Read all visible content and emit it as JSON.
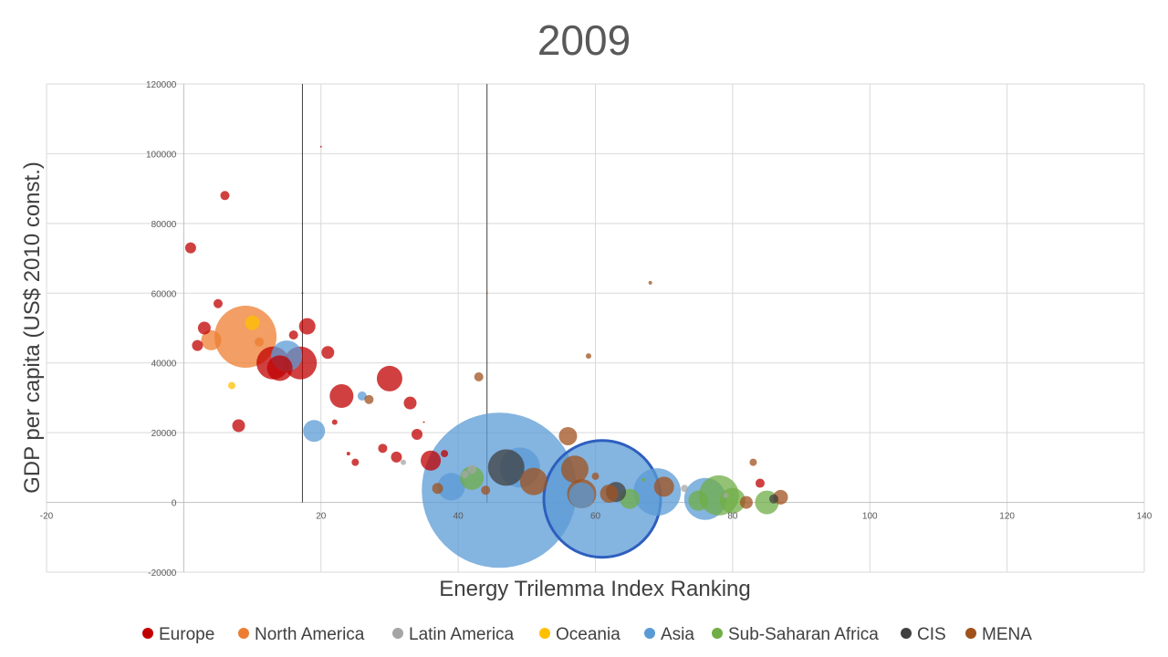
{
  "chart_data": {
    "type": "scatter",
    "bubble": true,
    "title": "2009",
    "xlabel": "Energy Trilemma Index Ranking",
    "ylabel": "GDP per capita (US$ 2010 const.)",
    "xlim": [
      -20,
      140
    ],
    "ylim": [
      -20000,
      120000
    ],
    "x_ticks": [
      -20,
      0,
      20,
      40,
      60,
      80,
      100,
      120,
      140
    ],
    "x_tick_labels": [
      "-20",
      "",
      "20",
      "40",
      "60",
      "80",
      "100",
      "120",
      "140"
    ],
    "y_ticks": [
      -20000,
      0,
      20000,
      40000,
      60000,
      80000,
      100000,
      120000
    ],
    "y_tick_labels": [
      "-20000",
      "0",
      "20000",
      "40000",
      "60000",
      "80000",
      "100000",
      "120000"
    ],
    "grid": true,
    "legend_position": "bottom",
    "reference_lines_x": [
      17.3,
      44.2
    ],
    "series": [
      {
        "name": "Europe",
        "color": "#C00000",
        "points": [
          {
            "x": 1,
            "y": 73000,
            "s": 6
          },
          {
            "x": 2,
            "y": 45000,
            "s": 6
          },
          {
            "x": 3,
            "y": 50000,
            "s": 7
          },
          {
            "x": 5,
            "y": 57000,
            "s": 5
          },
          {
            "x": 6,
            "y": 88000,
            "s": 5
          },
          {
            "x": 8,
            "y": 22000,
            "s": 7
          },
          {
            "x": 13,
            "y": 40000,
            "s": 18
          },
          {
            "x": 14,
            "y": 38500,
            "s": 14
          },
          {
            "x": 16,
            "y": 48000,
            "s": 5
          },
          {
            "x": 17,
            "y": 40000,
            "s": 18
          },
          {
            "x": 18,
            "y": 50500,
            "s": 9
          },
          {
            "x": 20,
            "y": 102000,
            "s": 1
          },
          {
            "x": 21,
            "y": 43000,
            "s": 7
          },
          {
            "x": 22,
            "y": 23000,
            "s": 3
          },
          {
            "x": 23,
            "y": 30500,
            "s": 13
          },
          {
            "x": 24,
            "y": 14000,
            "s": 2
          },
          {
            "x": 25,
            "y": 11500,
            "s": 4
          },
          {
            "x": 29,
            "y": 15500,
            "s": 5
          },
          {
            "x": 30,
            "y": 35500,
            "s": 14
          },
          {
            "x": 31,
            "y": 13000,
            "s": 6
          },
          {
            "x": 33,
            "y": 28500,
            "s": 7
          },
          {
            "x": 34,
            "y": 19500,
            "s": 6
          },
          {
            "x": 35,
            "y": 23000,
            "s": 1
          },
          {
            "x": 36,
            "y": 12000,
            "s": 11
          },
          {
            "x": 38,
            "y": 14000,
            "s": 4
          },
          {
            "x": 84,
            "y": 5500,
            "s": 5
          }
        ]
      },
      {
        "name": "North America",
        "color": "#ED7D31",
        "points": [
          {
            "x": 4,
            "y": 46500,
            "s": 11
          },
          {
            "x": 9,
            "y": 47500,
            "s": 34
          },
          {
            "x": 11,
            "y": 46000,
            "s": 5
          }
        ]
      },
      {
        "name": "Latin America",
        "color": "#A5A5A5",
        "points": [
          {
            "x": 32,
            "y": 11500,
            "s": 3
          },
          {
            "x": 41,
            "y": 8000,
            "s": 4
          },
          {
            "x": 42,
            "y": 9500,
            "s": 5
          },
          {
            "x": 73,
            "y": 4000,
            "s": 4
          },
          {
            "x": 79,
            "y": 2000,
            "s": 3
          }
        ]
      },
      {
        "name": "Oceania",
        "color": "#FFC000",
        "points": [
          {
            "x": 7,
            "y": 33500,
            "s": 4
          },
          {
            "x": 10,
            "y": 51500,
            "s": 8
          }
        ]
      },
      {
        "name": "Asia",
        "color": "#5B9BD5",
        "points": [
          {
            "x": 15,
            "y": 42000,
            "s": 17
          },
          {
            "x": 19,
            "y": 20500,
            "s": 12
          },
          {
            "x": 26,
            "y": 30500,
            "s": 5
          },
          {
            "x": 39,
            "y": 4500,
            "s": 15
          },
          {
            "x": 46,
            "y": 3500,
            "s": 85
          },
          {
            "x": 49,
            "y": 10000,
            "s": 22
          },
          {
            "x": 58,
            "y": 2000,
            "s": 14
          },
          {
            "x": 61,
            "y": 1000,
            "s": 64
          },
          {
            "x": 69,
            "y": 3000,
            "s": 26
          },
          {
            "x": 76,
            "y": 1000,
            "s": 23
          }
        ]
      },
      {
        "name": "Sub-Saharan Africa",
        "color": "#70AD47",
        "points": [
          {
            "x": 42,
            "y": 7000,
            "s": 13
          },
          {
            "x": 65,
            "y": 1000,
            "s": 11
          },
          {
            "x": 67,
            "y": 6500,
            "s": 2
          },
          {
            "x": 75,
            "y": 500,
            "s": 11
          },
          {
            "x": 78,
            "y": 2000,
            "s": 22
          },
          {
            "x": 80,
            "y": 500,
            "s": 14
          },
          {
            "x": 85,
            "y": 0,
            "s": 13
          }
        ]
      },
      {
        "name": "CIS",
        "color": "#404040",
        "points": [
          {
            "x": 17.3,
            "y": 60000,
            "s": 1
          },
          {
            "x": 47,
            "y": 10000,
            "s": 20
          },
          {
            "x": 63,
            "y": 3000,
            "s": 11
          },
          {
            "x": 86,
            "y": 1000,
            "s": 5
          }
        ]
      },
      {
        "name": "MENA",
        "color": "#A0521D",
        "points": [
          {
            "x": 27,
            "y": 29500,
            "s": 5
          },
          {
            "x": 37,
            "y": 4000,
            "s": 6
          },
          {
            "x": 43,
            "y": 36000,
            "s": 5
          },
          {
            "x": 44,
            "y": 3500,
            "s": 5
          },
          {
            "x": 44.2,
            "y": 60000,
            "s": 1
          },
          {
            "x": 51,
            "y": 6000,
            "s": 15
          },
          {
            "x": 56,
            "y": 19000,
            "s": 10
          },
          {
            "x": 57,
            "y": 9500,
            "s": 15
          },
          {
            "x": 58,
            "y": 2500,
            "s": 16
          },
          {
            "x": 59,
            "y": 42000,
            "s": 3
          },
          {
            "x": 60,
            "y": 7500,
            "s": 4
          },
          {
            "x": 62,
            "y": 2500,
            "s": 10
          },
          {
            "x": 68,
            "y": 63000,
            "s": 2
          },
          {
            "x": 70,
            "y": 4500,
            "s": 11
          },
          {
            "x": 82,
            "y": 0,
            "s": 7
          },
          {
            "x": 83,
            "y": 11500,
            "s": 4
          },
          {
            "x": 87,
            "y": 1500,
            "s": 8
          }
        ]
      }
    ],
    "highlight_point": {
      "series": "Asia",
      "index": 7,
      "outline": "#2E5FBF"
    }
  }
}
